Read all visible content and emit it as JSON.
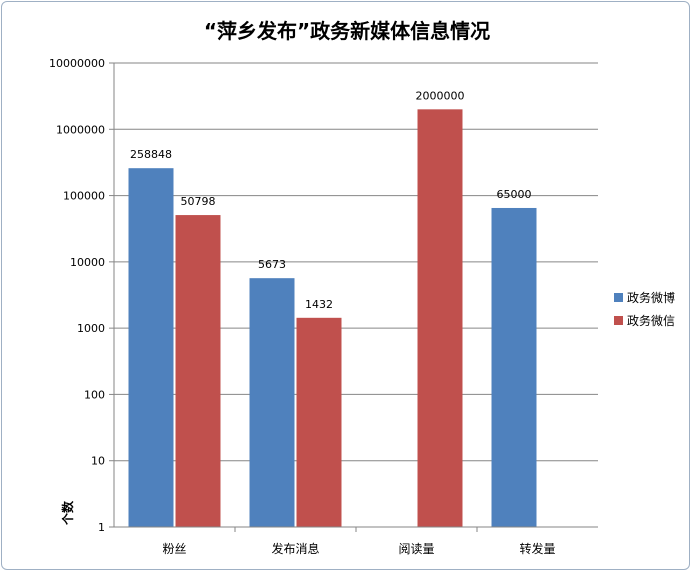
{
  "chart_data": {
    "type": "bar",
    "title": "“萍乡发布”政务新媒体信息情况",
    "ylabel": "个数",
    "xlabel": "",
    "yscale": "log",
    "ylim": [
      1,
      10000000
    ],
    "yticks": [
      "1",
      "10",
      "100",
      "1000",
      "10000",
      "100000",
      "1000000",
      "10000000"
    ],
    "grid": true,
    "legend_position": "right",
    "categories": [
      "粉丝",
      "发布消息",
      "阅读量",
      "转发量"
    ],
    "series": [
      {
        "name": "政务微博",
        "color": "#4f81bd",
        "values": [
          258848,
          5673,
          null,
          65000
        ],
        "labels": [
          "258848",
          "5673",
          "",
          "65000"
        ]
      },
      {
        "name": "政务微信",
        "color": "#c0504d",
        "values": [
          50798,
          1432,
          2000000,
          null
        ],
        "labels": [
          "50798",
          "1432",
          "2000000",
          ""
        ]
      }
    ]
  }
}
